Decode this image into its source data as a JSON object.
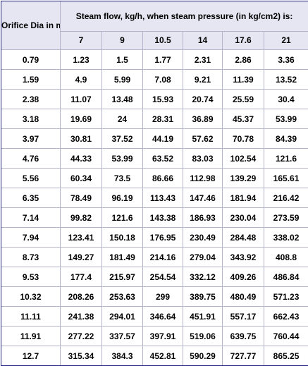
{
  "table": {
    "orifice_header": "Orifice Dia in mm",
    "title_header": "Steam flow, kg/h, when steam pressure (in kg/cm2) is:",
    "pressures": [
      "7",
      "9",
      "10.5",
      "14",
      "17.6",
      "21"
    ],
    "rows": [
      {
        "dia": "0.79",
        "values": [
          "1.23",
          "1.5",
          "1.77",
          "2.31",
          "2.86",
          "3.36"
        ]
      },
      {
        "dia": "1.59",
        "values": [
          "4.9",
          "5.99",
          "7.08",
          "9.21",
          "11.39",
          "13.52"
        ]
      },
      {
        "dia": "2.38",
        "values": [
          "11.07",
          "13.48",
          "15.93",
          "20.74",
          "25.59",
          "30.4"
        ]
      },
      {
        "dia": "3.18",
        "values": [
          "19.69",
          "24",
          "28.31",
          "36.89",
          "45.37",
          "53.99"
        ]
      },
      {
        "dia": "3.97",
        "values": [
          "30.81",
          "37.52",
          "44.19",
          "57.62",
          "70.78",
          "84.39"
        ]
      },
      {
        "dia": "4.76",
        "values": [
          "44.33",
          "53.99",
          "63.52",
          "83.03",
          "102.54",
          "121.6"
        ]
      },
      {
        "dia": "5.56",
        "values": [
          "60.34",
          "73.5",
          "86.66",
          "112.98",
          "139.29",
          "165.61"
        ]
      },
      {
        "dia": "6.35",
        "values": [
          "78.49",
          "96.19",
          "113.43",
          "147.46",
          "181.94",
          "216.42"
        ]
      },
      {
        "dia": "7.14",
        "values": [
          "99.82",
          "121.6",
          "143.38",
          "186.93",
          "230.04",
          "273.59"
        ]
      },
      {
        "dia": "7.94",
        "values": [
          "123.41",
          "150.18",
          "176.95",
          "230.49",
          "284.48",
          "338.02"
        ]
      },
      {
        "dia": "8.73",
        "values": [
          "149.27",
          "181.49",
          "214.16",
          "279.04",
          "343.92",
          "408.8"
        ]
      },
      {
        "dia": "9.53",
        "values": [
          "177.4",
          "215.97",
          "254.54",
          "332.12",
          "409.26",
          "486.84"
        ]
      },
      {
        "dia": "10.32",
        "values": [
          "208.26",
          "253.63",
          "299",
          "389.75",
          "480.49",
          "571.23"
        ]
      },
      {
        "dia": "11.11",
        "values": [
          "241.38",
          "294.01",
          "346.64",
          "451.91",
          "557.17",
          "662.43"
        ]
      },
      {
        "dia": "11.91",
        "values": [
          "277.22",
          "337.57",
          "397.91",
          "519.06",
          "639.75",
          "760.44"
        ]
      },
      {
        "dia": "12.7",
        "values": [
          "315.34",
          "384.3",
          "452.81",
          "590.29",
          "727.77",
          "865.25"
        ]
      }
    ]
  }
}
